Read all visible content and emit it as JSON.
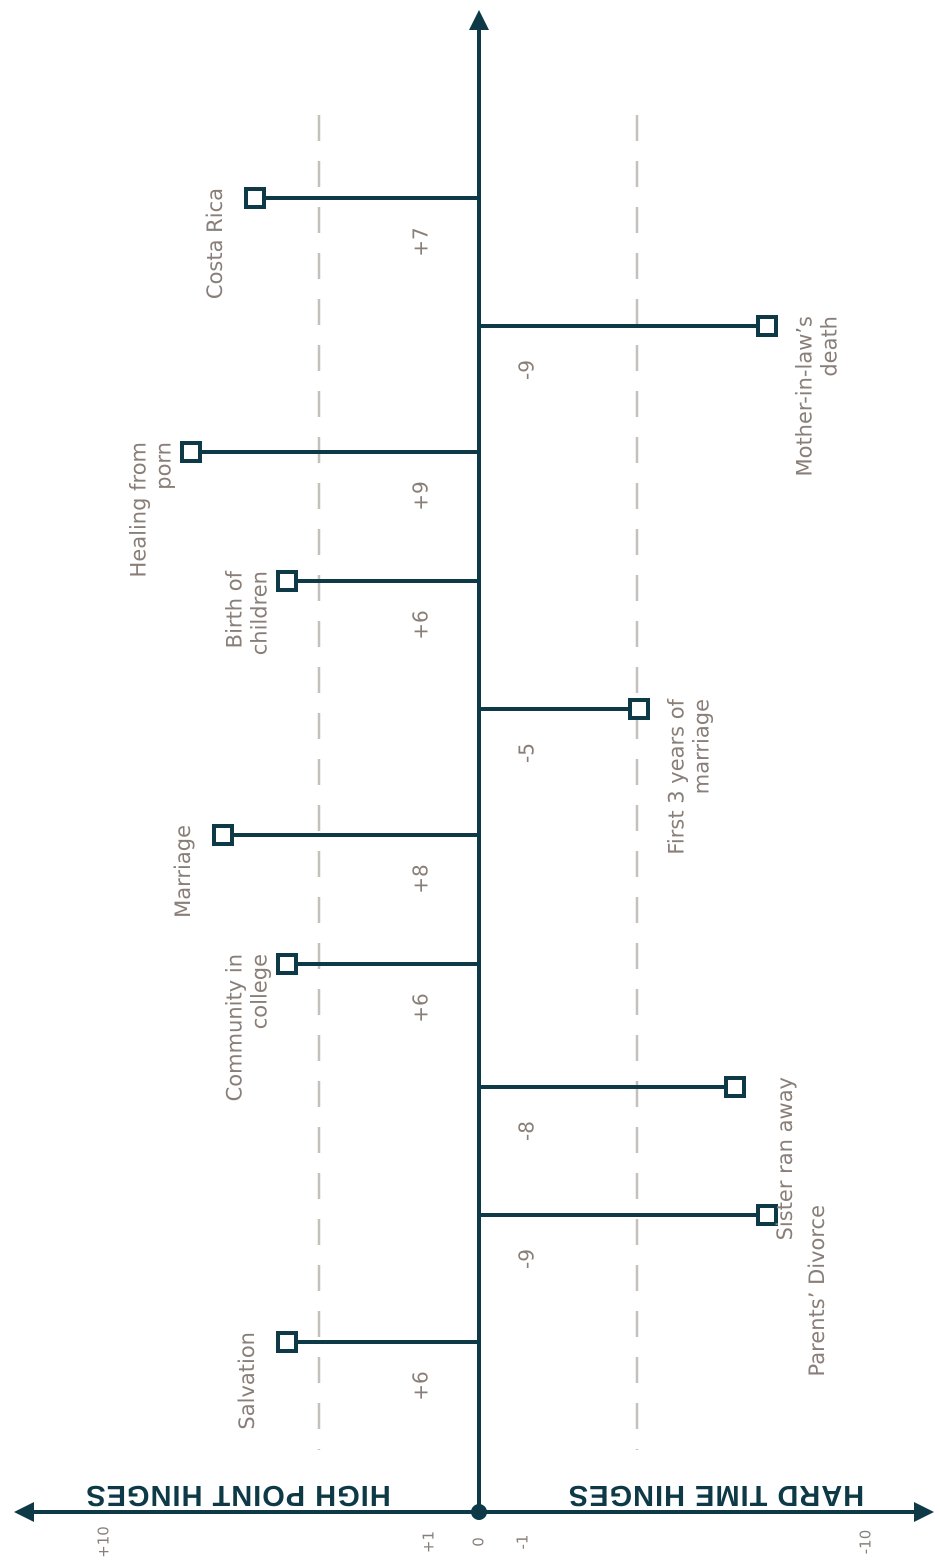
{
  "colors": {
    "axis": "#0e3a48",
    "text": "#8a7f78",
    "dash": "#c4c0bc"
  },
  "chart_data": {
    "type": "bar",
    "title": "",
    "orientation": "horizontal-bars, figure rotated 90°",
    "grid": "dashed reference lines at +1 threshold markers on each side",
    "axis_ticks": [
      "+10",
      "+1",
      "0",
      "-1",
      "-10"
    ],
    "left_header": "HIGH POINT HINGES",
    "right_header": "HARD TIME HINGES",
    "value_labels": [
      "+6",
      "-9",
      "-8",
      "+6",
      "+8",
      "-5",
      "+6",
      "+9",
      "-9",
      "+7"
    ],
    "categories": [
      "Salvation",
      "Parents’ Divorce",
      "Sister ran away",
      "Community in college",
      "Marriage",
      "First 3 years of marriage",
      "Birth of children",
      "Healing from porn",
      "Mother-in-law’s death",
      "Costa Rica"
    ],
    "label_lines": [
      [
        "Salvation"
      ],
      [
        "Parents’ Divorce"
      ],
      [
        "Sister ran away"
      ],
      [
        "Community in",
        "college"
      ],
      [
        "Marriage"
      ],
      [
        "First 3 years of",
        "marriage"
      ],
      [
        "Birth of",
        "children"
      ],
      [
        "Healing from",
        "porn"
      ],
      [
        "Mother-in-law’s",
        "death"
      ],
      [
        "Costa Rica"
      ]
    ],
    "values": [
      6,
      -9,
      -8,
      6,
      8,
      -5,
      6,
      9,
      -9,
      7
    ],
    "ylim": [
      -10,
      10
    ]
  }
}
